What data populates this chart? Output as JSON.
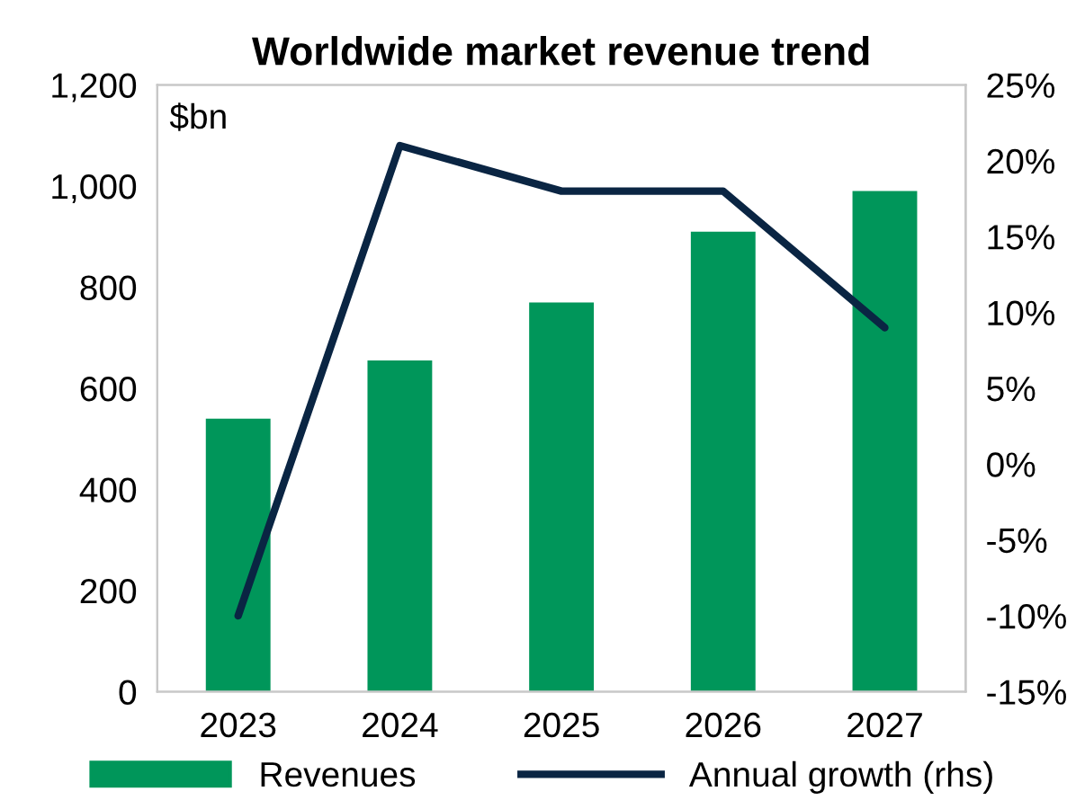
{
  "chart_data": {
    "type": "bar",
    "title": "Worldwide market revenue trend",
    "categories": [
      "2023",
      "2024",
      "2025",
      "2026",
      "2027"
    ],
    "series": [
      {
        "name": "Revenues",
        "color": "#00965a",
        "values": [
          540,
          655,
          770,
          910,
          990
        ]
      },
      {
        "name": "Annual growth (rhs)",
        "type": "line",
        "axis": "y2",
        "color": "#0a2543",
        "values": [
          -10,
          21,
          18,
          18,
          9
        ]
      }
    ],
    "ylim": [
      0,
      1200
    ],
    "yticks": [
      {
        "value": 0,
        "label": "0"
      },
      {
        "value": 200,
        "label": "200"
      },
      {
        "value": 400,
        "label": "400"
      },
      {
        "value": 600,
        "label": "600"
      },
      {
        "value": 800,
        "label": "800"
      },
      {
        "value": 1000,
        "label": "1,000"
      },
      {
        "value": 1200,
        "label": "1,200"
      }
    ],
    "y2lim": [
      -15,
      25
    ],
    "y2ticks": [
      {
        "value": -15,
        "label": "-15%"
      },
      {
        "value": -10,
        "label": "-10%"
      },
      {
        "value": -5,
        "label": "-5%"
      },
      {
        "value": 0,
        "label": "0%"
      },
      {
        "value": 5,
        "label": "5%"
      },
      {
        "value": 10,
        "label": "10%"
      },
      {
        "value": 15,
        "label": "15%"
      },
      {
        "value": 20,
        "label": "20%"
      },
      {
        "value": 25,
        "label": "25%"
      }
    ],
    "annotations": [
      "$bn"
    ],
    "legend": "bottom",
    "grid": false,
    "marker": "none"
  }
}
